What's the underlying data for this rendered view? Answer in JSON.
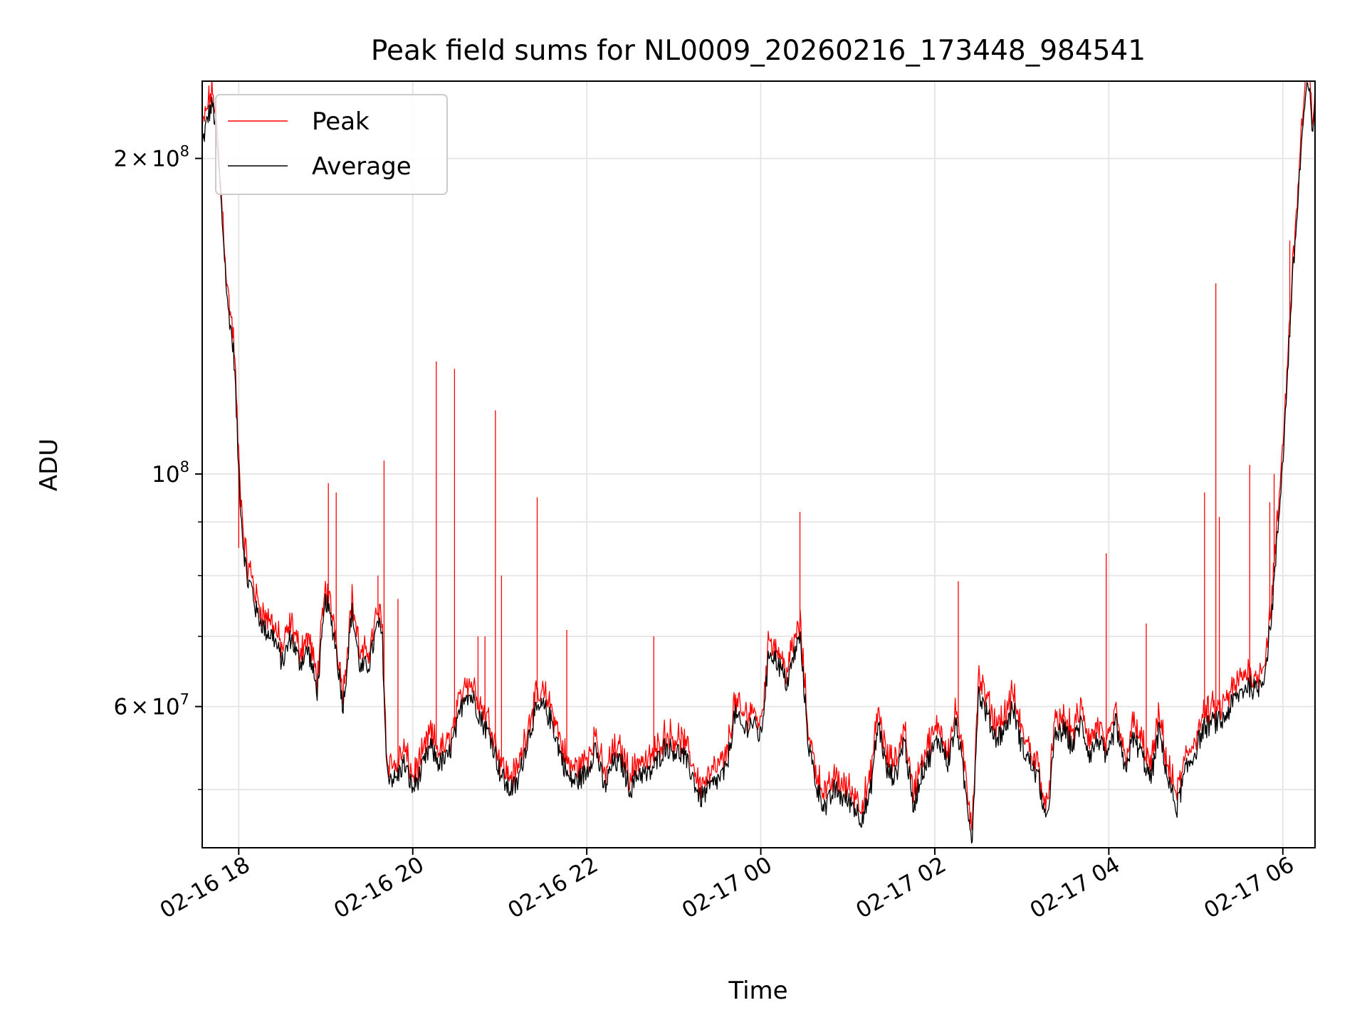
{
  "chart_data": {
    "type": "line",
    "title": "Peak field sums for NL0009_20260216_173448_984541",
    "xlabel": "Time",
    "ylabel": "ADU",
    "yscale": "log",
    "xlim_hours": [
      17.58,
      30.37
    ],
    "ylim": [
      44000000,
      237000000
    ],
    "grid": true,
    "legend_position": "upper-left",
    "x_ticks": [
      {
        "hour": 18,
        "label": "02-16 18"
      },
      {
        "hour": 20,
        "label": "02-16 20"
      },
      {
        "hour": 22,
        "label": "02-16 22"
      },
      {
        "hour": 24,
        "label": "02-17 00"
      },
      {
        "hour": 26,
        "label": "02-17 02"
      },
      {
        "hour": 28,
        "label": "02-17 04"
      },
      {
        "hour": 30,
        "label": "02-17 06"
      }
    ],
    "y_major_ticks": [
      {
        "value": 60000000,
        "mantissa": "6",
        "exponent": "7"
      },
      {
        "value": 100000000,
        "mantissa": "",
        "exponent": "8"
      },
      {
        "value": 200000000,
        "mantissa": "2",
        "exponent": "8"
      }
    ],
    "y_minor_ticks": [
      50000000,
      70000000,
      80000000,
      90000000
    ],
    "series": [
      {
        "name": "Peak",
        "color": "#ff0000",
        "spikes": [
          {
            "hour": 18.0,
            "value": 85000000
          },
          {
            "hour": 19.03,
            "value": 98000000
          },
          {
            "hour": 19.12,
            "value": 96000000
          },
          {
            "hour": 19.6,
            "value": 80000000
          },
          {
            "hour": 19.67,
            "value": 103000000
          },
          {
            "hour": 19.83,
            "value": 76000000
          },
          {
            "hour": 20.27,
            "value": 128000000
          },
          {
            "hour": 20.48,
            "value": 126000000
          },
          {
            "hour": 20.75,
            "value": 70000000
          },
          {
            "hour": 20.83,
            "value": 70000000
          },
          {
            "hour": 20.95,
            "value": 115000000
          },
          {
            "hour": 21.02,
            "value": 80000000
          },
          {
            "hour": 21.43,
            "value": 95000000
          },
          {
            "hour": 21.77,
            "value": 71000000
          },
          {
            "hour": 22.77,
            "value": 70000000
          },
          {
            "hour": 24.45,
            "value": 92000000
          },
          {
            "hour": 26.27,
            "value": 79000000
          },
          {
            "hour": 27.97,
            "value": 84000000
          },
          {
            "hour": 28.43,
            "value": 72000000
          },
          {
            "hour": 29.1,
            "value": 96000000
          },
          {
            "hour": 29.23,
            "value": 152000000
          },
          {
            "hour": 29.27,
            "value": 91000000
          },
          {
            "hour": 29.62,
            "value": 102000000
          },
          {
            "hour": 29.85,
            "value": 94000000
          },
          {
            "hour": 29.9,
            "value": 100000000
          },
          {
            "hour": 30.08,
            "value": 167000000
          }
        ]
      },
      {
        "name": "Average",
        "color": "#000000",
        "points": [
          [
            17.58,
            206000000
          ],
          [
            17.65,
            220000000
          ],
          [
            17.7,
            225000000
          ],
          [
            17.74,
            212000000
          ],
          [
            17.78,
            190000000
          ],
          [
            17.83,
            165000000
          ],
          [
            17.87,
            145000000
          ],
          [
            17.9,
            140000000
          ],
          [
            17.95,
            128000000
          ],
          [
            18.0,
            100000000
          ],
          [
            18.05,
            86000000
          ],
          [
            18.1,
            79000000
          ],
          [
            18.15,
            78000000
          ],
          [
            18.2,
            74000000
          ],
          [
            18.3,
            71000000
          ],
          [
            18.4,
            70000000
          ],
          [
            18.5,
            66000000
          ],
          [
            18.6,
            70000000
          ],
          [
            18.7,
            66000000
          ],
          [
            18.8,
            68000000
          ],
          [
            18.9,
            62000000
          ],
          [
            19.0,
            76000000
          ],
          [
            19.1,
            70000000
          ],
          [
            19.2,
            60000000
          ],
          [
            19.3,
            74000000
          ],
          [
            19.4,
            65000000
          ],
          [
            19.5,
            66000000
          ],
          [
            19.6,
            72000000
          ],
          [
            19.65,
            70000000
          ],
          [
            19.7,
            52000000
          ],
          [
            19.8,
            51000000
          ],
          [
            19.9,
            53000000
          ],
          [
            20.0,
            50000000
          ],
          [
            20.1,
            52000000
          ],
          [
            20.2,
            55000000
          ],
          [
            20.3,
            53000000
          ],
          [
            20.4,
            53500000
          ],
          [
            20.5,
            57000000
          ],
          [
            20.6,
            62000000
          ],
          [
            20.7,
            61000000
          ],
          [
            20.8,
            58000000
          ],
          [
            20.9,
            56000000
          ],
          [
            21.0,
            52000000
          ],
          [
            21.1,
            50000000
          ],
          [
            21.2,
            50500000
          ],
          [
            21.3,
            55000000
          ],
          [
            21.4,
            59000000
          ],
          [
            21.5,
            60000000
          ],
          [
            21.6,
            58000000
          ],
          [
            21.7,
            54000000
          ],
          [
            21.8,
            51000000
          ],
          [
            21.9,
            51000000
          ],
          [
            22.0,
            52000000
          ],
          [
            22.1,
            55000000
          ],
          [
            22.2,
            50000000
          ],
          [
            22.3,
            53000000
          ],
          [
            22.4,
            53000000
          ],
          [
            22.5,
            50000000
          ],
          [
            22.6,
            52000000
          ],
          [
            22.7,
            51500000
          ],
          [
            22.8,
            53000000
          ],
          [
            22.9,
            55000000
          ],
          [
            23.0,
            54500000
          ],
          [
            23.1,
            54000000
          ],
          [
            23.2,
            52000000
          ],
          [
            23.3,
            49000000
          ],
          [
            23.4,
            50000000
          ],
          [
            23.5,
            51000000
          ],
          [
            23.6,
            52000000
          ],
          [
            23.7,
            59000000
          ],
          [
            23.8,
            57000000
          ],
          [
            23.9,
            58000000
          ],
          [
            24.0,
            56000000
          ],
          [
            24.1,
            68000000
          ],
          [
            24.2,
            66000000
          ],
          [
            24.3,
            63000000
          ],
          [
            24.4,
            68000000
          ],
          [
            24.45,
            70000000
          ],
          [
            24.55,
            55000000
          ],
          [
            24.65,
            50000000
          ],
          [
            24.75,
            48000000
          ],
          [
            24.85,
            50000000
          ],
          [
            24.95,
            49000000
          ],
          [
            25.05,
            48500000
          ],
          [
            25.15,
            47000000
          ],
          [
            25.25,
            49000000
          ],
          [
            25.35,
            58000000
          ],
          [
            25.45,
            52000000
          ],
          [
            25.55,
            51500000
          ],
          [
            25.65,
            56000000
          ],
          [
            25.75,
            48000000
          ],
          [
            25.85,
            52000000
          ],
          [
            25.95,
            54000000
          ],
          [
            26.05,
            56000000
          ],
          [
            26.15,
            53000000
          ],
          [
            26.25,
            58000000
          ],
          [
            26.35,
            50000000
          ],
          [
            26.43,
            45000000
          ],
          [
            26.5,
            62000000
          ],
          [
            26.6,
            59000000
          ],
          [
            26.7,
            56000000
          ],
          [
            26.8,
            57000000
          ],
          [
            26.9,
            60000000
          ],
          [
            27.0,
            55000000
          ],
          [
            27.1,
            53000000
          ],
          [
            27.2,
            51000000
          ],
          [
            27.28,
            46000000
          ],
          [
            27.38,
            56000000
          ],
          [
            27.48,
            57000000
          ],
          [
            27.58,
            55000000
          ],
          [
            27.68,
            58000000
          ],
          [
            27.78,
            54000000
          ],
          [
            27.88,
            56000000
          ],
          [
            27.98,
            53000000
          ],
          [
            28.08,
            58000000
          ],
          [
            28.18,
            52000000
          ],
          [
            28.28,
            56000000
          ],
          [
            28.38,
            54000000
          ],
          [
            28.48,
            51000000
          ],
          [
            28.58,
            57000000
          ],
          [
            28.68,
            51000000
          ],
          [
            28.78,
            48000000
          ],
          [
            28.88,
            52000000
          ],
          [
            28.98,
            54000000
          ],
          [
            29.08,
            57000000
          ],
          [
            29.2,
            58000000
          ],
          [
            29.3,
            58000000
          ],
          [
            29.45,
            61000000
          ],
          [
            29.6,
            63000000
          ],
          [
            29.7,
            62000000
          ],
          [
            29.8,
            65000000
          ],
          [
            29.88,
            75000000
          ],
          [
            29.95,
            90000000
          ],
          [
            30.02,
            110000000
          ],
          [
            30.1,
            148000000
          ],
          [
            30.16,
            175000000
          ],
          [
            30.22,
            210000000
          ],
          [
            30.26,
            228000000
          ],
          [
            30.3,
            235000000
          ],
          [
            30.34,
            210000000
          ],
          [
            30.37,
            230000000
          ]
        ]
      }
    ]
  }
}
